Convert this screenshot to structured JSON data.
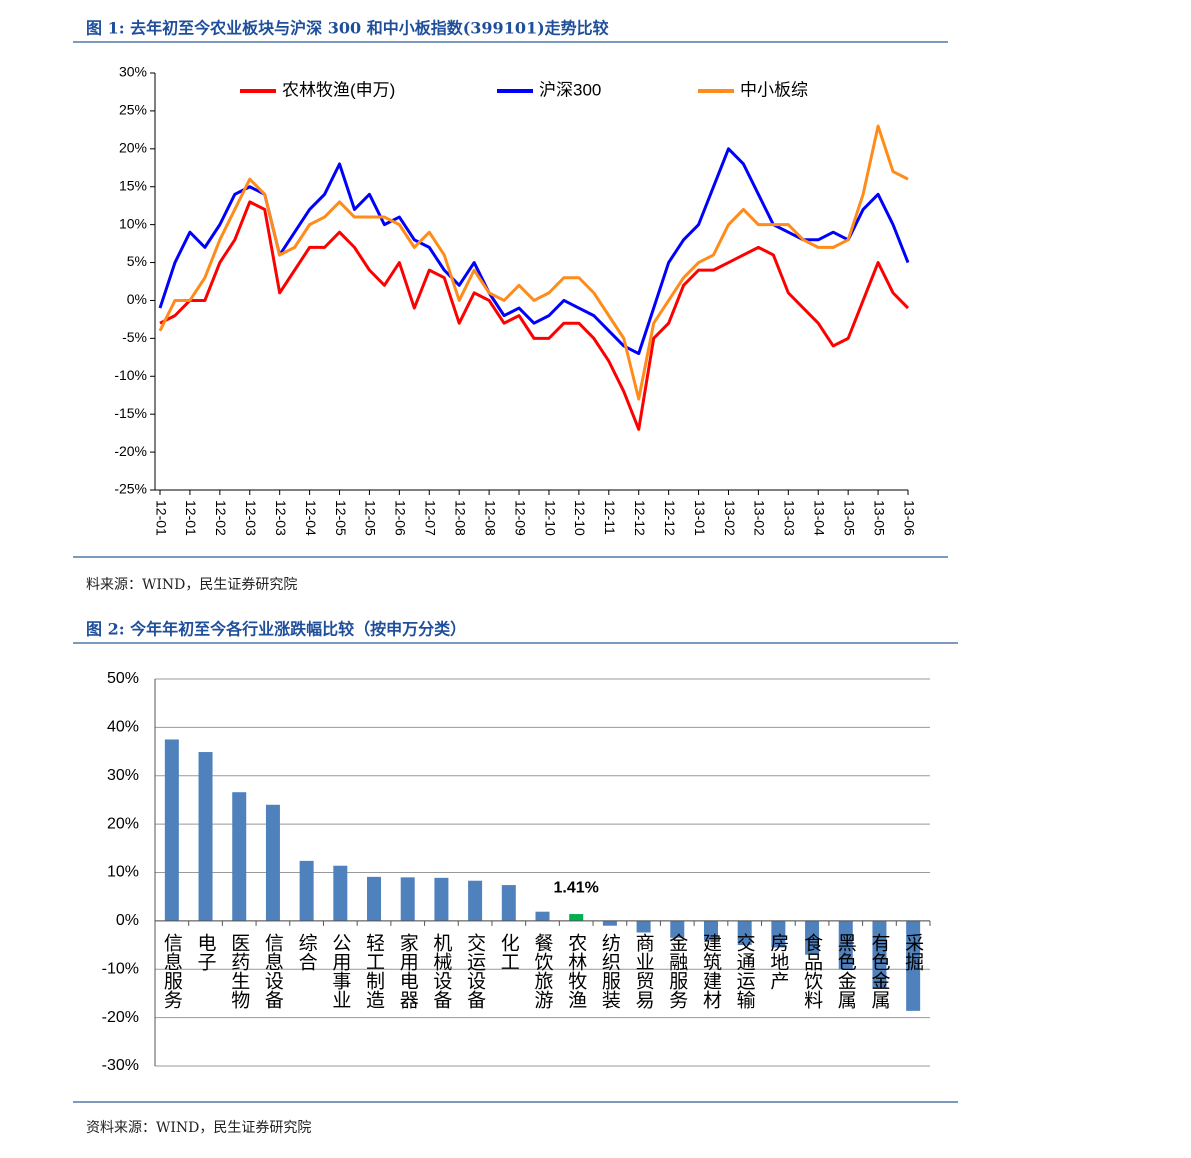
{
  "chart_data": [
    {
      "type": "line",
      "title": "图 1: 去年初至今农业板块与沪深 300 和中小板指数(399101)走势比较",
      "source": "料来源：WIND，民生证券研究院",
      "categories": [
        "12-01",
        null,
        "12-01",
        null,
        "12-02",
        null,
        "12-03",
        null,
        "12-03",
        null,
        "12-04",
        null,
        "12-05",
        null,
        "12-05",
        null,
        "12-06",
        null,
        "12-07",
        null,
        "12-08",
        null,
        "12-08",
        null,
        "12-09",
        null,
        "12-10",
        null,
        "12-10",
        null,
        "12-11",
        null,
        "12-12",
        null,
        "12-12",
        null,
        "13-01",
        null,
        "13-02",
        null,
        "13-02",
        null,
        "13-03",
        null,
        "13-04",
        null,
        "13-05",
        null,
        "13-05",
        null,
        "13-06"
      ],
      "series": [
        {
          "name": "农林牧渔(申万)",
          "color": "#ff0000",
          "values": [
            -3,
            -2,
            0,
            0,
            5,
            8,
            13,
            12,
            1,
            4,
            7,
            7,
            9,
            7,
            4,
            2,
            5,
            -1,
            4,
            3,
            -3,
            1,
            0,
            -3,
            -2,
            -5,
            -5,
            -3,
            -3,
            -5,
            -8,
            -12,
            -17,
            -5,
            -3,
            2,
            4,
            4,
            5,
            6,
            7,
            6,
            1,
            -1,
            -3,
            -6,
            -5,
            0,
            5,
            1,
            -1
          ]
        },
        {
          "name": "沪深300",
          "color": "#0000ff",
          "values": [
            -1,
            5,
            9,
            7,
            10,
            14,
            15,
            14,
            6,
            9,
            12,
            14,
            18,
            12,
            14,
            10,
            11,
            8,
            7,
            4,
            2,
            5,
            1,
            -2,
            -1,
            -3,
            -2,
            0,
            -1,
            -2,
            -4,
            -6,
            -7,
            -1,
            5,
            8,
            10,
            15,
            20,
            18,
            14,
            10,
            9,
            8,
            8,
            9,
            8,
            12,
            14,
            10,
            5
          ]
        },
        {
          "name": "中小板综",
          "color": "#ff8c1a",
          "values": [
            -4,
            0,
            0,
            3,
            8,
            12,
            16,
            14,
            6,
            7,
            10,
            11,
            13,
            11,
            11,
            11,
            10,
            7,
            9,
            6,
            0,
            4,
            1,
            0,
            2,
            0,
            1,
            3,
            3,
            1,
            -2,
            -5,
            -13,
            -3,
            0,
            3,
            5,
            6,
            10,
            12,
            10,
            10,
            10,
            8,
            7,
            7,
            8,
            14,
            23,
            17,
            16
          ]
        }
      ],
      "ylim": [
        -25,
        30
      ],
      "yticks": [
        {
          "value": -25,
          "label": "-25%"
        },
        {
          "value": -20,
          "label": "-20%"
        },
        {
          "value": -15,
          "label": "-15%"
        },
        {
          "value": -10,
          "label": "-10%"
        },
        {
          "value": -5,
          "label": "-5%"
        },
        {
          "value": 0,
          "label": "0%"
        },
        {
          "value": 5,
          "label": "5%"
        },
        {
          "value": 10,
          "label": "10%"
        },
        {
          "value": 15,
          "label": "15%"
        },
        {
          "value": 20,
          "label": "20%"
        },
        {
          "value": 25,
          "label": "25%"
        },
        {
          "value": 30,
          "label": "30%"
        }
      ],
      "grid": false,
      "legend": "top"
    },
    {
      "type": "bar",
      "title": "图 2: 今年年初至今各行业涨跌幅比较（按申万分类）",
      "source": "资料来源：WIND，民生证券研究院",
      "categories": [
        "信息服务",
        "电子",
        "医药生物",
        "信息设备",
        "综合",
        "公用事业",
        "轻工制造",
        "家用电器",
        "机械设备",
        "交运设备",
        "化工",
        "餐饮旅游",
        "农林牧渔",
        "纺织服装",
        "商业贸易",
        "金融服务",
        "建筑建材",
        "交通运输",
        "房地产",
        "食品饮料",
        "黑色金属",
        "有色金属",
        "采掘"
      ],
      "values": [
        37.5,
        34.9,
        26.6,
        24,
        12.4,
        11.4,
        9.1,
        9,
        8.9,
        8.3,
        7.4,
        1.9,
        1.41,
        -1,
        -2.4,
        -3.5,
        -4,
        -5,
        -5.5,
        -7,
        -10,
        -14,
        -18.6
      ],
      "value_labels": [
        null,
        null,
        null,
        null,
        null,
        null,
        null,
        null,
        null,
        null,
        null,
        null,
        "1.41%",
        null,
        null,
        null,
        null,
        null,
        null,
        null,
        null,
        null,
        null
      ],
      "colors": [
        "#4f81bd",
        "#4f81bd",
        "#4f81bd",
        "#4f81bd",
        "#4f81bd",
        "#4f81bd",
        "#4f81bd",
        "#4f81bd",
        "#4f81bd",
        "#4f81bd",
        "#4f81bd",
        "#4f81bd",
        "#00b050",
        "#4f81bd",
        "#4f81bd",
        "#4f81bd",
        "#4f81bd",
        "#4f81bd",
        "#4f81bd",
        "#4f81bd",
        "#4f81bd",
        "#4f81bd",
        "#4f81bd"
      ],
      "ylim": [
        -30,
        50
      ],
      "yticks": [
        {
          "value": -30,
          "label": "-30%"
        },
        {
          "value": -20,
          "label": "-20%"
        },
        {
          "value": -10,
          "label": "-10%"
        },
        {
          "value": 0,
          "label": "0%"
        },
        {
          "value": 10,
          "label": "10%"
        },
        {
          "value": 20,
          "label": "20%"
        },
        {
          "value": 30,
          "label": "30%"
        },
        {
          "value": 40,
          "label": "40%"
        },
        {
          "value": 50,
          "label": "50%"
        }
      ],
      "grid": true
    }
  ]
}
